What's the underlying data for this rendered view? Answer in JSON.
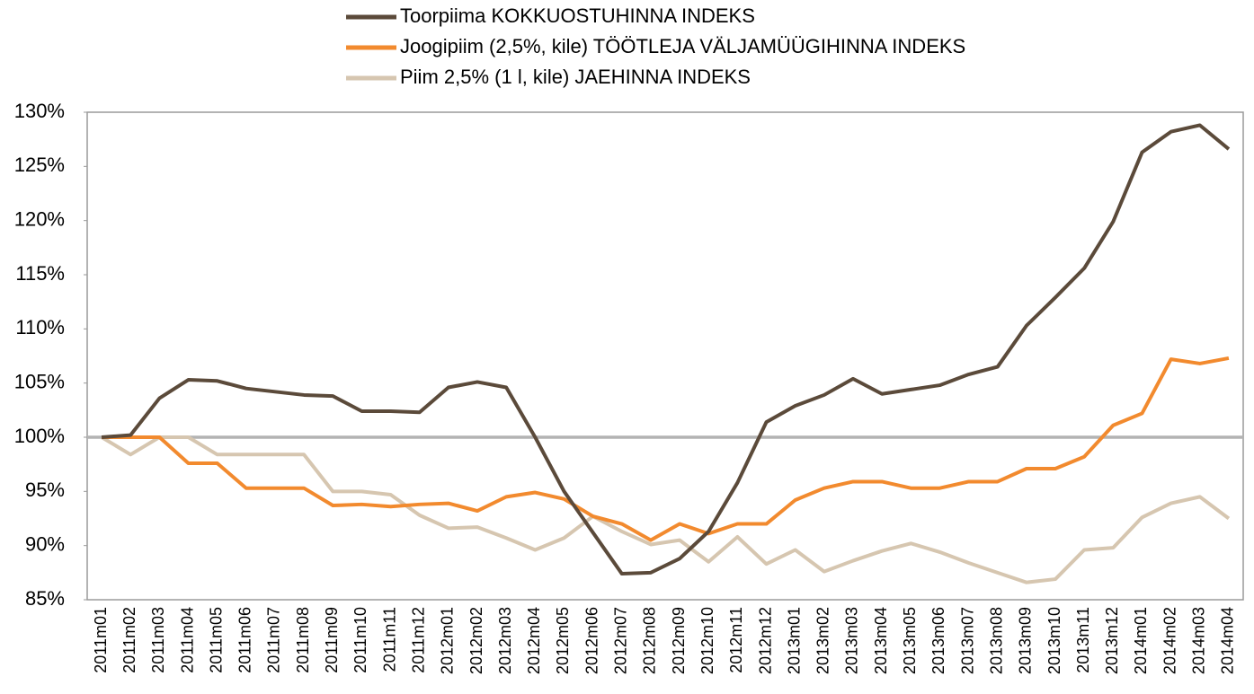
{
  "chart_data": {
    "type": "line",
    "categories": [
      "2011m01",
      "2011m02",
      "2011m03",
      "2011m04",
      "2011m05",
      "2011m06",
      "2011m07",
      "2011m08",
      "2011m09",
      "2011m10",
      "2011m11",
      "2011m12",
      "2012m01",
      "2012m02",
      "2012m03",
      "2012m04",
      "2012m05",
      "2012m06",
      "2012m07",
      "2012m08",
      "2012m09",
      "2012m10",
      "2012m11",
      "2012m12",
      "2013m01",
      "2013m02",
      "2013m03",
      "2013m04",
      "2013m05",
      "2013m06",
      "2013m07",
      "2013m08",
      "2013m09",
      "2013m10",
      "2013m11",
      "2013m12",
      "2014m01",
      "2014m02",
      "2014m03",
      "2014m04"
    ],
    "series": [
      {
        "name": "Toorpiima KOKKUOSTUHINNA INDEKS",
        "color": "#5b4a3a",
        "values": [
          100,
          100.2,
          103.6,
          105.3,
          105.2,
          104.5,
          104.2,
          103.9,
          103.8,
          102.4,
          102.4,
          102.3,
          104.6,
          105.1,
          104.6,
          100,
          95,
          91.2,
          87.4,
          87.5,
          88.8,
          91.3,
          95.8,
          101.4,
          102.9,
          103.9,
          105.4,
          104,
          104.4,
          104.8,
          105.8,
          106.5,
          110.3,
          112.9,
          115.6,
          119.9,
          126.3,
          128.2,
          128.8,
          126.6
        ]
      },
      {
        "name": "Joogipiim (2,5%, kile) TÖÖTLEJA VÄLJAMÜÜGIHINNA INDEKS",
        "color": "#f28a2e",
        "values": [
          100,
          100,
          100,
          97.6,
          97.6,
          95.3,
          95.3,
          95.3,
          93.7,
          93.8,
          93.6,
          93.8,
          93.9,
          93.2,
          94.5,
          94.9,
          94.3,
          92.7,
          92,
          90.5,
          92,
          91.1,
          92,
          92,
          94.2,
          95.3,
          95.9,
          95.9,
          95.3,
          95.3,
          95.9,
          95.9,
          97.1,
          97.1,
          98.2,
          101.1,
          102.2,
          107.2,
          106.8,
          107.3
        ]
      },
      {
        "name": "Piim 2,5% (1 l, kile) JAEHINNA INDEKS",
        "color": "#d6c6b0",
        "values": [
          100,
          98.4,
          100,
          100,
          98.4,
          98.4,
          98.4,
          98.4,
          95,
          95,
          94.7,
          92.8,
          91.6,
          91.7,
          90.7,
          89.6,
          90.7,
          92.7,
          91.3,
          90.1,
          90.5,
          88.5,
          90.8,
          88.3,
          89.6,
          87.6,
          88.6,
          89.5,
          90.2,
          89.4,
          88.4,
          87.5,
          86.6,
          86.9,
          89.6,
          89.8,
          92.6,
          93.9,
          94.5,
          92.5
        ]
      }
    ],
    "ylim": [
      85,
      130
    ],
    "yticks": [
      {
        "value": 85,
        "label": "85%"
      },
      {
        "value": 90,
        "label": "90%"
      },
      {
        "value": 95,
        "label": "95%"
      },
      {
        "value": 100,
        "label": "100%"
      },
      {
        "value": 105,
        "label": "105%"
      },
      {
        "value": 110,
        "label": "110%"
      },
      {
        "value": 115,
        "label": "115%"
      },
      {
        "value": 120,
        "label": "120%"
      },
      {
        "value": 125,
        "label": "125%"
      },
      {
        "value": 130,
        "label": "130%"
      }
    ],
    "reference_line": 100,
    "legend": "top"
  }
}
